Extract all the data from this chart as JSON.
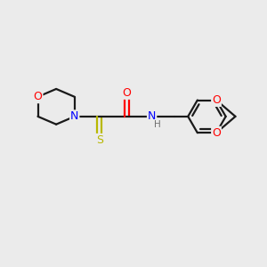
{
  "bg_color": "#ebebeb",
  "bond_color": "#1a1a1a",
  "atom_colors": {
    "O": "#ff0000",
    "N": "#0000ff",
    "S": "#b8b800",
    "H": "#707070",
    "C": "#1a1a1a"
  },
  "lw": 1.6,
  "fs": 9.0
}
